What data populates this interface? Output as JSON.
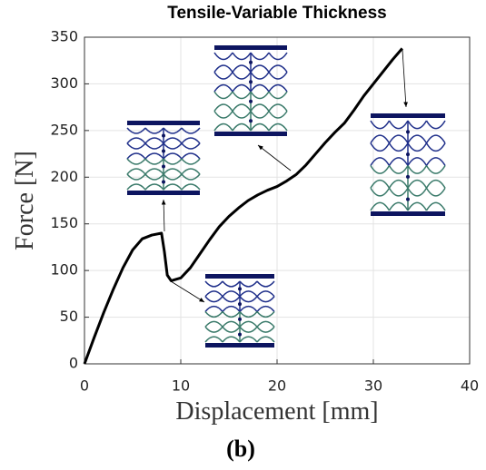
{
  "chart_data": {
    "type": "line",
    "title": "Tensile-Variable Thickness",
    "x_label": "Displacement [mm]",
    "y_label": "Force [N]",
    "caption": "(b)",
    "x": [
      0,
      1,
      2,
      3,
      4,
      5,
      6,
      7,
      8,
      8.3,
      8.6,
      9,
      10,
      11,
      12,
      13,
      14,
      15,
      16,
      17,
      18,
      19,
      20,
      21,
      22,
      23,
      24,
      25,
      26,
      27,
      28,
      29,
      30,
      31,
      32,
      33
    ],
    "values": [
      0,
      28,
      55,
      80,
      103,
      122,
      134,
      138,
      140,
      120,
      95,
      89,
      92,
      103,
      118,
      133,
      147,
      158,
      167,
      175,
      181,
      186,
      190,
      196,
      203,
      213,
      225,
      237,
      248,
      258,
      272,
      287,
      300,
      313,
      326,
      338
    ],
    "color": "#000000",
    "xlim": [
      0,
      40
    ],
    "xticks": [
      0,
      10,
      20,
      30,
      40
    ],
    "ylim": [
      0,
      350
    ],
    "yticks": [
      0,
      50,
      100,
      150,
      200,
      250,
      300,
      350
    ],
    "grid": true
  }
}
